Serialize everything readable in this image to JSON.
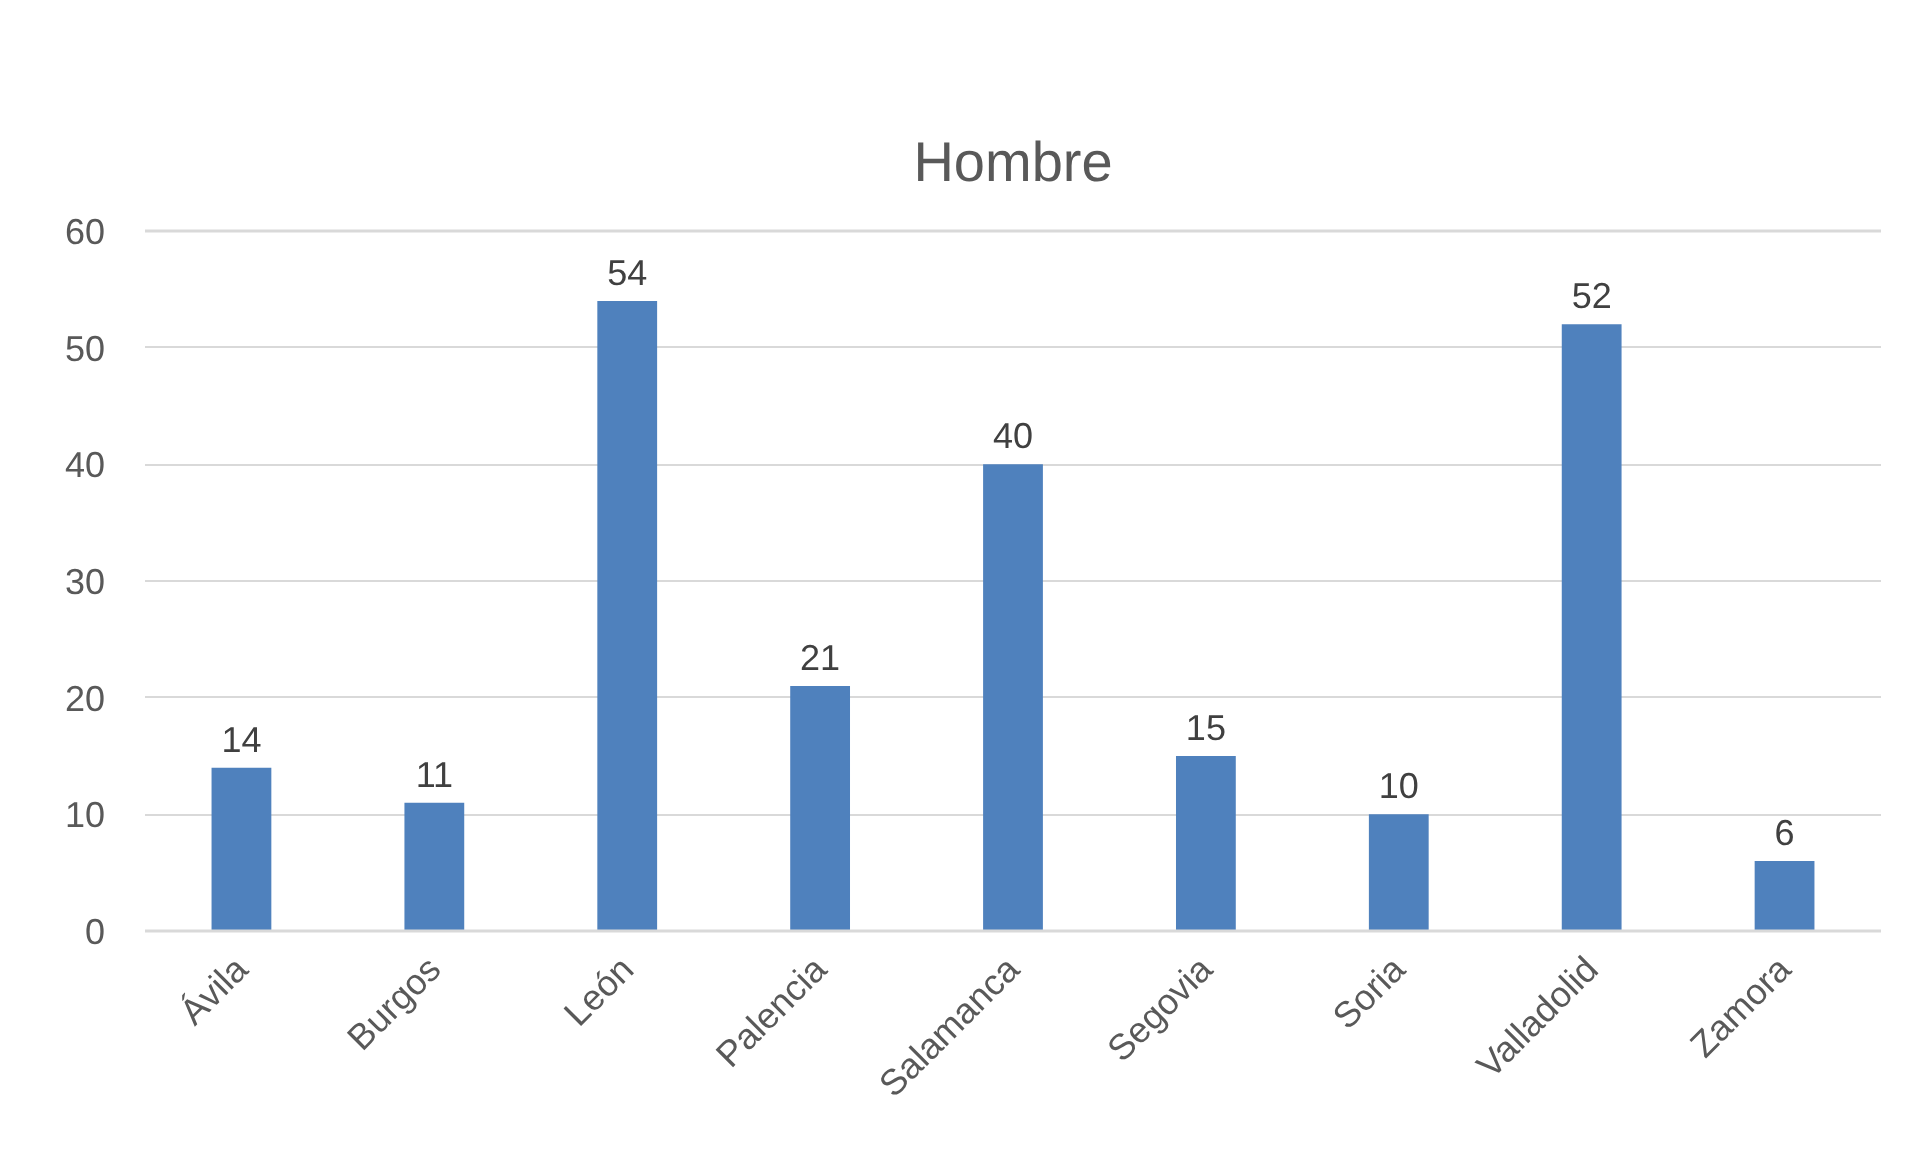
{
  "chart_data": {
    "type": "bar",
    "title": "Hombre",
    "categories": [
      "Ávila",
      "Burgos",
      "León",
      "Palencia",
      "Salamanca",
      "Segovia",
      "Soria",
      "Valladolid",
      "Zamora"
    ],
    "values": [
      14,
      11,
      54,
      21,
      40,
      15,
      10,
      52,
      6
    ],
    "color": "#4f81bd",
    "ylim": [
      0,
      60
    ],
    "yticks": [
      0,
      10,
      20,
      30,
      40,
      50,
      60
    ],
    "grid": "y",
    "data_labels": true
  }
}
